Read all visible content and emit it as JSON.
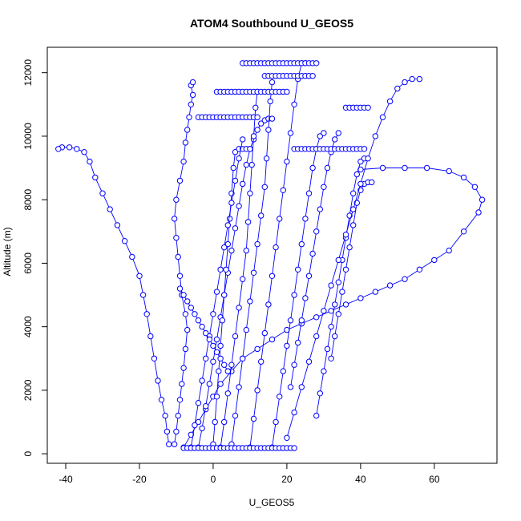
{
  "chart_data": {
    "type": "scatter",
    "title": "ATOM4 Southbound U_GEOS5",
    "xlabel": "U_GEOS5",
    "ylabel": "Altitude (m)",
    "xlim": [
      -45,
      77
    ],
    "ylim": [
      -300,
      12800
    ],
    "x_ticks": [
      -40,
      -20,
      0,
      20,
      40,
      60
    ],
    "y_ticks": [
      0,
      2000,
      4000,
      6000,
      8000,
      10000,
      12000
    ],
    "marker": "open-circle",
    "connect_points": true,
    "grid": false,
    "legend": "none",
    "series_color": "#0000ff",
    "series": [
      {
        "x": [
          -10.5,
          -10,
          -9.5,
          -9,
          -8.5,
          -8,
          -7.5,
          -7,
          -7.5,
          -8.5,
          -9,
          -9.5,
          -10,
          -10.5,
          -10,
          -9,
          -8,
          -7.5,
          -7,
          -6.5,
          -6,
          -5.5,
          -6,
          -5.5
        ],
        "y": [
          300,
          700,
          1200,
          1700,
          2200,
          2700,
          3300,
          3900,
          4400,
          5000,
          5600,
          6200,
          6800,
          7400,
          8000,
          8600,
          9200,
          9800,
          10200,
          10600,
          11000,
          11300,
          11600,
          11700
        ]
      },
      {
        "x": [
          -12,
          -12.5,
          -13,
          -14,
          -15,
          -16,
          -17,
          -18,
          -19,
          -20,
          -22,
          -24,
          -26,
          -28,
          -30,
          -32,
          -33.5,
          -35,
          -37,
          -39,
          -41,
          -42
        ],
        "y": [
          300,
          700,
          1200,
          1700,
          2300,
          3000,
          3700,
          4400,
          5000,
          5600,
          6200,
          6700,
          7200,
          7700,
          8200,
          8700,
          9200,
          9500,
          9600,
          9650,
          9650,
          9600
        ]
      },
      {
        "x": [
          -8,
          -6,
          -4,
          -2,
          0,
          2,
          5,
          8,
          12,
          16,
          20,
          24,
          28,
          32,
          36,
          40,
          44,
          48,
          52,
          56,
          60,
          64,
          68,
          72,
          73,
          71,
          68,
          64,
          58,
          52,
          46,
          40
        ],
        "y": [
          200,
          600,
          1000,
          1400,
          1800,
          2200,
          2600,
          3000,
          3300,
          3600,
          3900,
          4100,
          4300,
          4500,
          4700,
          4900,
          5100,
          5300,
          5500,
          5800,
          6100,
          6400,
          7000,
          7600,
          8000,
          8400,
          8700,
          8900,
          9000,
          9000,
          9000,
          8950
        ]
      },
      {
        "x": [
          -4,
          -3,
          -2,
          -1,
          0,
          1,
          2,
          3,
          4,
          5,
          6,
          7,
          8,
          9,
          10,
          11,
          12,
          13,
          14,
          15,
          16
        ],
        "y": [
          200,
          800,
          1500,
          2200,
          2900,
          3600,
          4300,
          5000,
          5700,
          6400,
          7100,
          7800,
          8500,
          9100,
          9600,
          9900,
          10200,
          10400,
          10500,
          10550,
          10550
        ]
      },
      {
        "x": [
          2,
          3,
          4,
          5,
          6,
          7,
          8,
          9,
          9.5,
          10,
          10.5,
          11,
          11.5,
          12
        ],
        "y": [
          200,
          1000,
          1900,
          2800,
          3700,
          4600,
          5500,
          6400,
          7300,
          8200,
          9100,
          10000,
          10900,
          11400
        ]
      },
      {
        "x": [
          5,
          6,
          7,
          8,
          9,
          10,
          11,
          12,
          13,
          14,
          14.5,
          15,
          15.5,
          16
        ],
        "y": [
          300,
          1200,
          2100,
          3000,
          3900,
          4800,
          5700,
          6600,
          7500,
          8400,
          9300,
          10200,
          11100,
          11700
        ]
      },
      {
        "x": [
          10,
          11,
          12,
          13,
          14,
          15,
          16,
          17,
          18,
          19,
          20,
          21,
          22,
          23,
          24,
          25
        ],
        "y": [
          200,
          1100,
          2000,
          2900,
          3800,
          4700,
          5600,
          6500,
          7400,
          8300,
          9200,
          10100,
          11000,
          11800,
          12300,
          12300
        ]
      },
      {
        "x": [
          16,
          17,
          18,
          19,
          20,
          21,
          22,
          23,
          24,
          25,
          26,
          27,
          28,
          29,
          30
        ],
        "y": [
          200,
          1000,
          1800,
          2600,
          3400,
          4200,
          5000,
          5800,
          6600,
          7400,
          8200,
          9000,
          9600,
          10000,
          10100
        ]
      },
      {
        "x": [
          21,
          22,
          23,
          24,
          25,
          26,
          27,
          28,
          29,
          30,
          31,
          32,
          33,
          34
        ],
        "y": [
          2100,
          2800,
          3500,
          4200,
          4900,
          5600,
          6300,
          7000,
          7700,
          8400,
          9000,
          9500,
          9900,
          10100
        ]
      },
      {
        "x": [
          28,
          29,
          30,
          31,
          32,
          33,
          34,
          35,
          36,
          37,
          38,
          39,
          40,
          41
        ],
        "y": [
          1200,
          1900,
          2600,
          3300,
          4000,
          4700,
          5400,
          6100,
          6800,
          7500,
          8200,
          8800,
          9200,
          9300
        ]
      },
      {
        "x": [
          32,
          33,
          34,
          35,
          36,
          37,
          38,
          39,
          40,
          41,
          42,
          43
        ],
        "y": [
          3000,
          3700,
          4400,
          5100,
          5800,
          6500,
          7200,
          7900,
          8300,
          8500,
          8550,
          8550
        ]
      },
      {
        "x": [
          0,
          0.5,
          1,
          1.5,
          2,
          2.5,
          3,
          3.5,
          4,
          4.5,
          5,
          5.5,
          6,
          7,
          8,
          9,
          10
        ],
        "y": [
          300,
          1000,
          1800,
          2600,
          3400,
          4200,
          5000,
          5800,
          6600,
          7400,
          8200,
          9000,
          9500,
          9600,
          9600,
          9600,
          9600
        ]
      },
      {
        "x": [
          -6,
          -5,
          -4,
          -3,
          -2,
          -1,
          0,
          1,
          2,
          3,
          4,
          5,
          6,
          7,
          8
        ],
        "y": [
          200,
          900,
          1600,
          2300,
          3000,
          3700,
          4400,
          5100,
          5800,
          6500,
          7200,
          7900,
          8600,
          9300,
          9900
        ]
      },
      {
        "x": [
          20,
          22,
          24,
          26,
          28,
          30,
          32,
          34,
          36,
          38,
          40,
          42,
          44,
          46,
          48,
          50,
          52,
          54,
          56
        ],
        "y": [
          500,
          1300,
          2100,
          2900,
          3700,
          4500,
          5300,
          6100,
          6900,
          7700,
          8500,
          9300,
          10000,
          10600,
          11100,
          11500,
          11700,
          11800,
          11800
        ]
      },
      {
        "x": [
          8,
          9,
          10,
          11,
          12,
          13,
          14,
          15,
          16,
          17,
          18,
          19,
          20,
          21,
          22,
          23,
          24,
          25,
          26,
          27,
          28
        ],
        "y": [
          12300,
          12300,
          12300,
          12300,
          12300,
          12300,
          12300,
          12300,
          12300,
          12300,
          12300,
          12300,
          12300,
          12300,
          12300,
          12300,
          12300,
          12300,
          12300,
          12300,
          12300
        ]
      },
      {
        "x": [
          -8,
          -7,
          -6,
          -5,
          -4,
          -3,
          -2,
          -1,
          0,
          1,
          2,
          3,
          4,
          5,
          6,
          7,
          8,
          9,
          10,
          11,
          12,
          13,
          14,
          15,
          16,
          17,
          18,
          19,
          20,
          21,
          22
        ],
        "y": [
          180,
          180,
          180,
          180,
          180,
          180,
          180,
          180,
          180,
          180,
          180,
          180,
          180,
          180,
          180,
          180,
          180,
          180,
          180,
          180,
          180,
          180,
          180,
          180,
          180,
          180,
          180,
          180,
          180,
          180,
          180
        ]
      },
      {
        "x": [
          1,
          2,
          3,
          4,
          5,
          6,
          7,
          8,
          9,
          10,
          11,
          12,
          13,
          14,
          15,
          16,
          17,
          18,
          19,
          20
        ],
        "y": [
          11400,
          11400,
          11400,
          11400,
          11400,
          11400,
          11400,
          11400,
          11400,
          11400,
          11400,
          11400,
          11400,
          11400,
          11400,
          11400,
          11400,
          11400,
          11400,
          11400
        ]
      },
      {
        "x": [
          14,
          15,
          16,
          17,
          18,
          19,
          20,
          21,
          22,
          23,
          24,
          25,
          26,
          27
        ],
        "y": [
          11900,
          11900,
          11900,
          11900,
          11900,
          11900,
          11900,
          11900,
          11900,
          11900,
          11900,
          11900,
          11900,
          11900
        ]
      },
      {
        "x": [
          -9,
          -8,
          -7,
          -6,
          -5,
          -4,
          -3,
          -2,
          -1,
          0,
          1,
          2,
          3,
          4
        ],
        "y": [
          5200,
          5000,
          4800,
          4600,
          4400,
          4200,
          4000,
          3800,
          3600,
          3400,
          3200,
          3000,
          2800,
          2600
        ]
      },
      {
        "x": [
          36,
          37,
          38,
          39,
          40,
          41,
          42
        ],
        "y": [
          10900,
          10900,
          10900,
          10900,
          10900,
          10900,
          10900
        ]
      },
      {
        "x": [
          -4,
          -3,
          -2,
          -1,
          0,
          1,
          2,
          3,
          4,
          5,
          6,
          7,
          8,
          9,
          10,
          11,
          12
        ],
        "y": [
          10600,
          10600,
          10600,
          10600,
          10600,
          10600,
          10600,
          10600,
          10600,
          10600,
          10600,
          10600,
          10600,
          10600,
          10600,
          10600,
          10600
        ]
      },
      {
        "x": [
          22,
          23,
          24,
          25,
          26,
          27,
          28,
          29,
          30,
          31,
          32,
          33,
          34,
          35,
          36,
          37,
          38,
          39,
          40,
          41
        ],
        "y": [
          9600,
          9600,
          9600,
          9600,
          9600,
          9600,
          9600,
          9600,
          9600,
          9600,
          9600,
          9600,
          9600,
          9600,
          9600,
          9600,
          9600,
          9600,
          9600,
          9600
        ]
      }
    ]
  }
}
